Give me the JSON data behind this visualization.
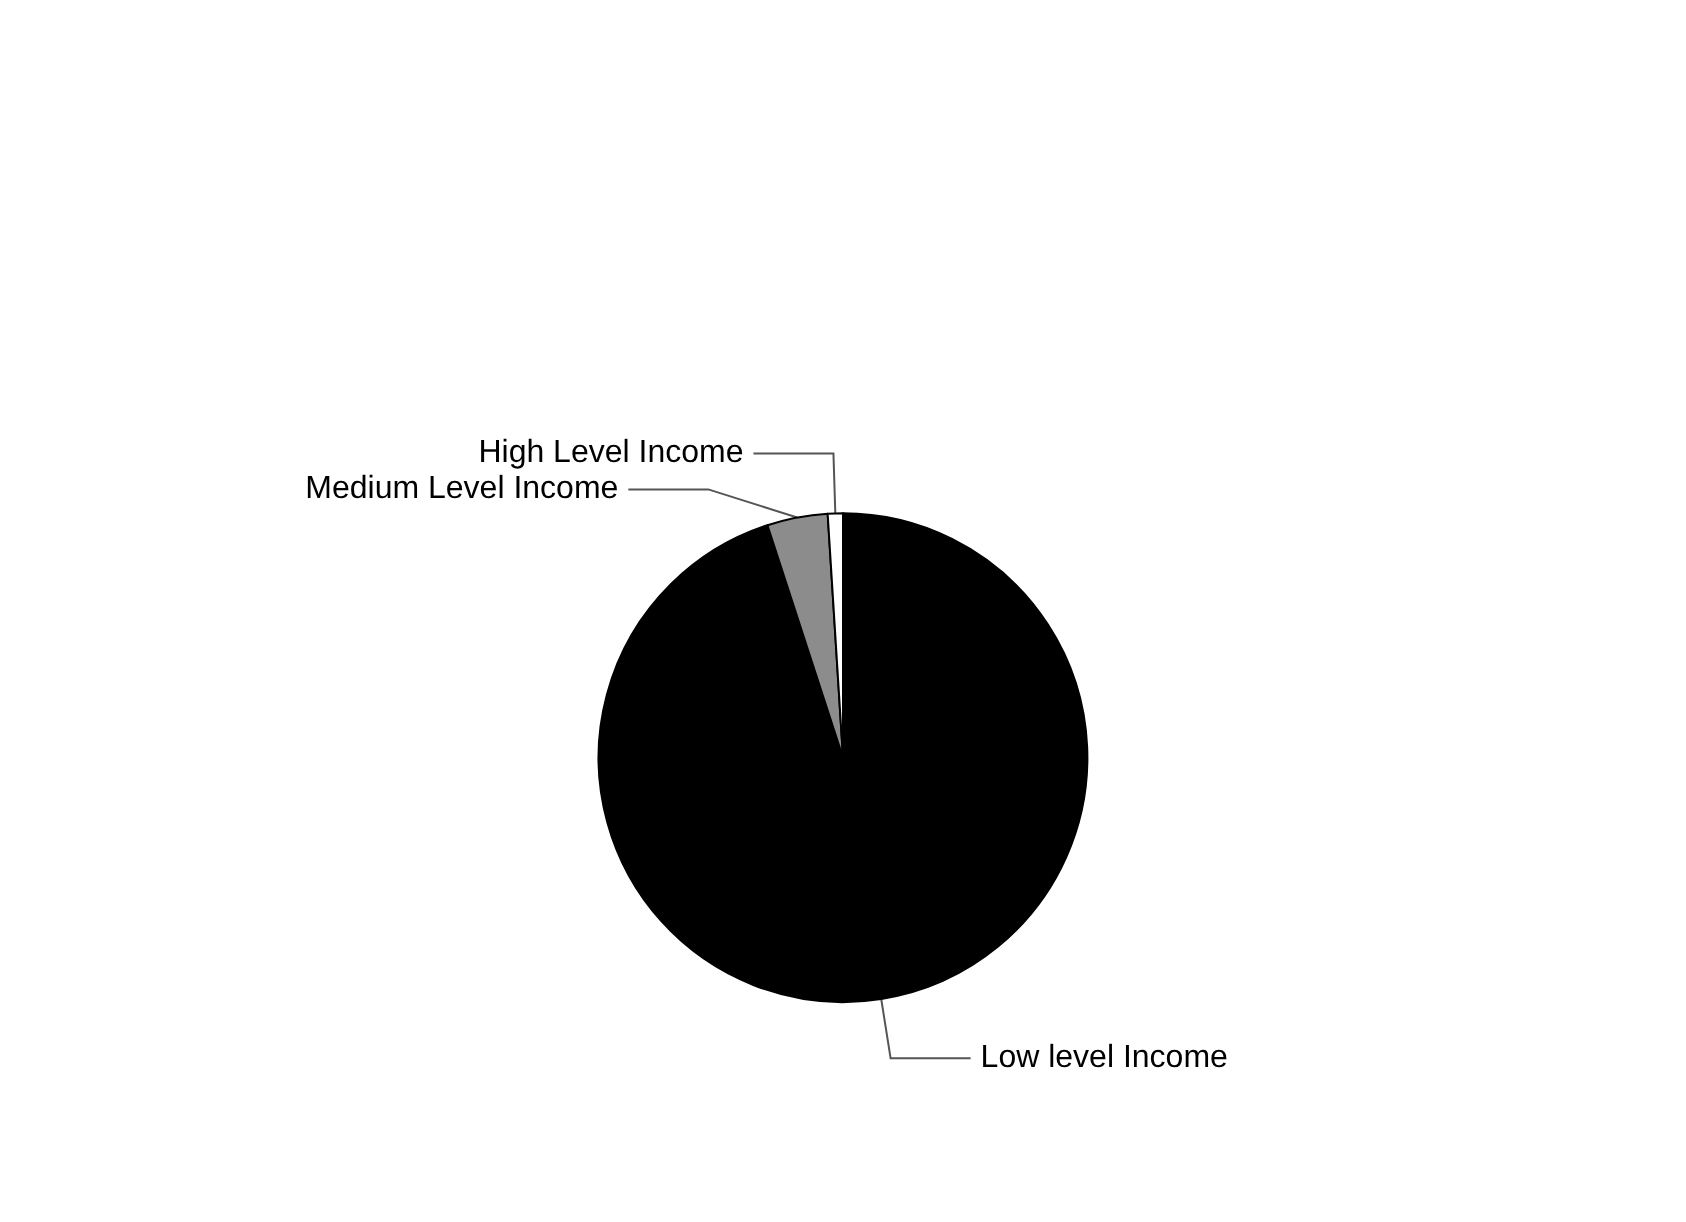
{
  "chart_data": {
    "type": "pie",
    "categories": [
      "Low level Income",
      "Medium Level Income",
      "High Level Income"
    ],
    "values": [
      95,
      4,
      1
    ],
    "colors": [
      "#000000",
      "#8c8c8c",
      "#ffffff"
    ]
  }
}
